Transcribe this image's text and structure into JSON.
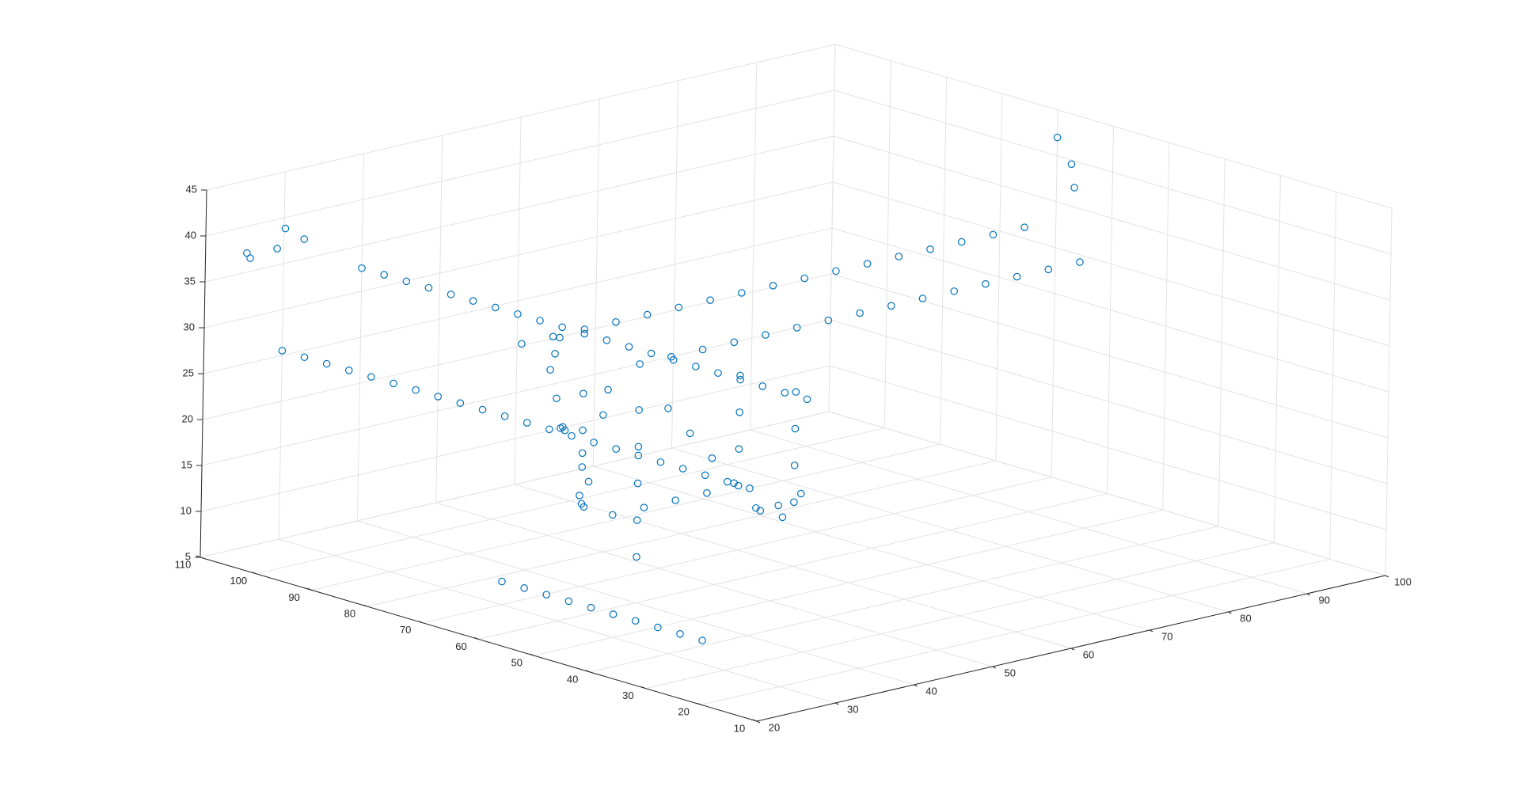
{
  "chart_data": {
    "type": "scatter",
    "title": "",
    "xlabel": "",
    "ylabel": "",
    "zlabel": "",
    "grid": true,
    "marker": "circle",
    "marker_color": "#0072BD",
    "xlim": [
      20,
      100
    ],
    "ylim": [
      10,
      110
    ],
    "zlim": [
      5,
      45
    ],
    "x_ticks": [
      "20",
      "30",
      "40",
      "50",
      "60",
      "70",
      "80",
      "90",
      "100"
    ],
    "y_ticks": [
      "10",
      "20",
      "30",
      "40",
      "50",
      "60",
      "70",
      "80",
      "90",
      "100",
      "110"
    ],
    "z_ticks": [
      "5",
      "10",
      "15",
      "20",
      "25",
      "30",
      "35",
      "40",
      "45"
    ],
    "series": [
      {
        "points": [
          [
            20,
            96,
            30
          ],
          [
            20,
            92,
            30
          ],
          [
            20,
            88,
            30
          ],
          [
            20,
            84,
            30
          ],
          [
            20,
            80,
            30
          ],
          [
            20,
            76,
            30
          ],
          [
            20,
            72,
            30
          ],
          [
            20,
            68,
            30
          ],
          [
            20,
            64,
            30
          ],
          [
            20,
            60,
            30
          ],
          [
            20,
            56,
            30
          ],
          [
            20,
            52,
            30
          ],
          [
            20,
            48,
            30
          ],
          [
            20,
            44,
            30
          ],
          [
            20,
            40,
            30
          ],
          [
            20,
            36,
            30
          ],
          [
            20,
            32,
            30
          ],
          [
            20,
            28,
            30
          ],
          [
            20,
            24,
            30
          ],
          [
            20,
            20,
            30
          ],
          [
            20,
            16,
            30
          ],
          [
            20,
            12,
            30
          ],
          [
            30,
            96,
            37
          ],
          [
            30,
            92,
            37
          ],
          [
            30,
            88,
            37
          ],
          [
            30,
            84,
            37
          ],
          [
            30,
            80,
            37
          ],
          [
            30,
            76,
            37
          ],
          [
            30,
            72,
            37
          ],
          [
            30,
            68,
            37
          ],
          [
            30,
            64,
            37
          ],
          [
            30,
            60,
            37
          ],
          [
            30,
            56,
            37
          ],
          [
            30,
            52,
            37
          ],
          [
            30,
            48,
            37
          ],
          [
            30,
            44,
            37
          ],
          [
            30,
            40,
            37
          ],
          [
            30,
            36,
            37
          ],
          [
            30,
            32,
            37
          ],
          [
            30,
            28,
            37
          ],
          [
            30,
            24,
            37
          ],
          [
            30,
            20,
            37
          ],
          [
            30,
            16,
            37
          ],
          [
            22,
            100,
            40
          ],
          [
            23,
            100,
            42
          ],
          [
            24,
            98,
            41
          ],
          [
            20,
            102,
            39
          ],
          [
            21,
            104,
            39
          ],
          [
            32,
            70,
            33
          ],
          [
            36,
            70,
            33
          ],
          [
            40,
            70,
            33
          ],
          [
            44,
            70,
            33
          ],
          [
            48,
            70,
            33
          ],
          [
            52,
            70,
            33
          ],
          [
            56,
            70,
            33
          ],
          [
            60,
            70,
            33
          ],
          [
            64,
            70,
            33
          ],
          [
            68,
            70,
            33
          ],
          [
            72,
            70,
            33
          ],
          [
            76,
            70,
            33
          ],
          [
            80,
            70,
            33
          ],
          [
            84,
            70,
            33
          ],
          [
            88,
            70,
            33
          ],
          [
            92,
            70,
            33
          ],
          [
            96,
            70,
            33
          ],
          [
            40,
            60,
            31
          ],
          [
            44,
            60,
            31
          ],
          [
            48,
            60,
            31
          ],
          [
            52,
            60,
            31
          ],
          [
            56,
            60,
            31
          ],
          [
            60,
            60,
            31
          ],
          [
            64,
            60,
            31
          ],
          [
            68,
            60,
            31
          ],
          [
            72,
            60,
            31
          ],
          [
            76,
            60,
            31
          ],
          [
            80,
            60,
            31
          ],
          [
            84,
            60,
            31
          ],
          [
            88,
            60,
            31
          ],
          [
            92,
            60,
            31
          ],
          [
            96,
            60,
            31
          ],
          [
            98,
            64,
            38
          ],
          [
            99,
            66,
            40
          ],
          [
            100,
            70,
            42
          ],
          [
            40,
            60,
            26
          ],
          [
            40,
            60,
            22
          ],
          [
            40,
            60,
            18
          ],
          [
            40,
            60,
            14
          ],
          [
            40,
            60,
            10
          ],
          [
            40,
            70,
            26
          ],
          [
            40,
            70,
            22
          ],
          [
            40,
            70,
            18
          ],
          [
            40,
            70,
            14
          ],
          [
            60,
            60,
            24
          ],
          [
            60,
            60,
            20
          ],
          [
            60,
            60,
            16
          ],
          [
            60,
            60,
            12
          ],
          [
            60,
            70,
            24
          ],
          [
            60,
            70,
            20
          ],
          [
            60,
            70,
            16
          ],
          [
            60,
            70,
            12
          ],
          [
            20,
            20,
            12
          ],
          [
            20,
            24,
            12
          ],
          [
            20,
            28,
            12
          ],
          [
            20,
            32,
            12
          ],
          [
            20,
            36,
            12
          ],
          [
            20,
            40,
            12
          ],
          [
            20,
            44,
            12
          ],
          [
            20,
            48,
            12
          ],
          [
            20,
            52,
            12
          ],
          [
            20,
            56,
            12
          ],
          [
            44,
            70,
            12
          ],
          [
            48,
            70,
            12
          ],
          [
            52,
            70,
            12
          ],
          [
            56,
            70,
            12
          ],
          [
            60,
            62,
            10
          ],
          [
            60,
            66,
            10
          ],
          [
            30,
            60,
            26
          ],
          [
            32,
            62,
            25
          ],
          [
            34,
            58,
            27
          ],
          [
            36,
            60,
            29
          ],
          [
            30,
            56,
            24
          ],
          [
            28,
            52,
            22
          ],
          [
            26,
            50,
            20
          ],
          [
            24,
            48,
            22
          ],
          [
            26,
            54,
            28
          ],
          [
            28,
            58,
            30
          ],
          [
            30,
            62,
            32
          ],
          [
            32,
            64,
            33
          ],
          [
            34,
            66,
            34
          ],
          [
            38,
            52,
            28
          ],
          [
            38,
            48,
            26
          ],
          [
            38,
            44,
            24
          ],
          [
            38,
            40,
            22
          ],
          [
            38,
            36,
            20
          ],
          [
            38,
            32,
            21
          ],
          [
            38,
            28,
            23
          ]
        ]
      }
    ]
  }
}
